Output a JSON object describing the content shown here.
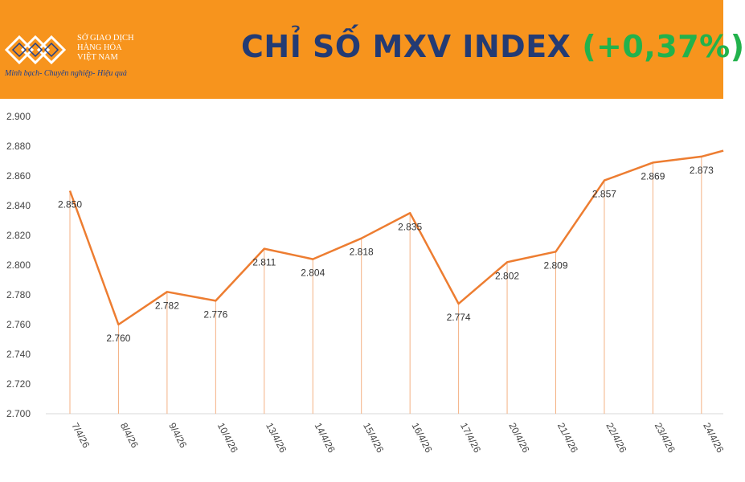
{
  "header": {
    "org_lines": [
      "SỞ GIAO DỊCH",
      "HÀNG HÓA",
      "VIỆT NAM"
    ],
    "slogan": "Minh bạch- Chuyên nghiệp- Hiệu quả",
    "title": "CHỈ SỐ MXV INDEX",
    "change": "(+0,37%)",
    "colors": {
      "band": "#f7941d",
      "title": "#233b74",
      "change": "#22b24c",
      "logo": "#1d3f8f"
    }
  },
  "chart_data": {
    "type": "line",
    "title": "CHỈ SỐ MXV INDEX (+0,37%)",
    "categories": [
      "7/4/26",
      "8/4/26",
      "9/4/26",
      "10/4/26",
      "13/4/26",
      "14/4/26",
      "15/4/26",
      "16/4/26",
      "17/4/26",
      "20/4/26",
      "21/4/26",
      "22/4/26",
      "23/4/26",
      "24/4/26"
    ],
    "values": [
      2850,
      2760,
      2782,
      2776,
      2811,
      2804,
      2818,
      2835,
      2774,
      2802,
      2809,
      2857,
      2869,
      2873
    ],
    "data_labels": [
      "2.850",
      "2.760",
      "2.782",
      "2.776",
      "2.811",
      "2.804",
      "2.818",
      "2.835",
      "2.774",
      "2.802",
      "2.809",
      "2.857",
      "2.869",
      "2.873"
    ],
    "trailing_value": 2877,
    "ylim": [
      2700,
      2900
    ],
    "yticks": [
      2900,
      2880,
      2860,
      2840,
      2820,
      2800,
      2780,
      2760,
      2740,
      2720,
      2700
    ],
    "ytick_labels": [
      "2.900",
      "2.880",
      "2.860",
      "2.840",
      "2.820",
      "2.800",
      "2.780",
      "2.760",
      "2.740",
      "2.720",
      "2.700"
    ],
    "xlabel": "",
    "ylabel": "",
    "grid": false,
    "line_color": "#ed7d31",
    "drop_line_color": "#f4b183",
    "axis_color": "#d9d9d9"
  }
}
